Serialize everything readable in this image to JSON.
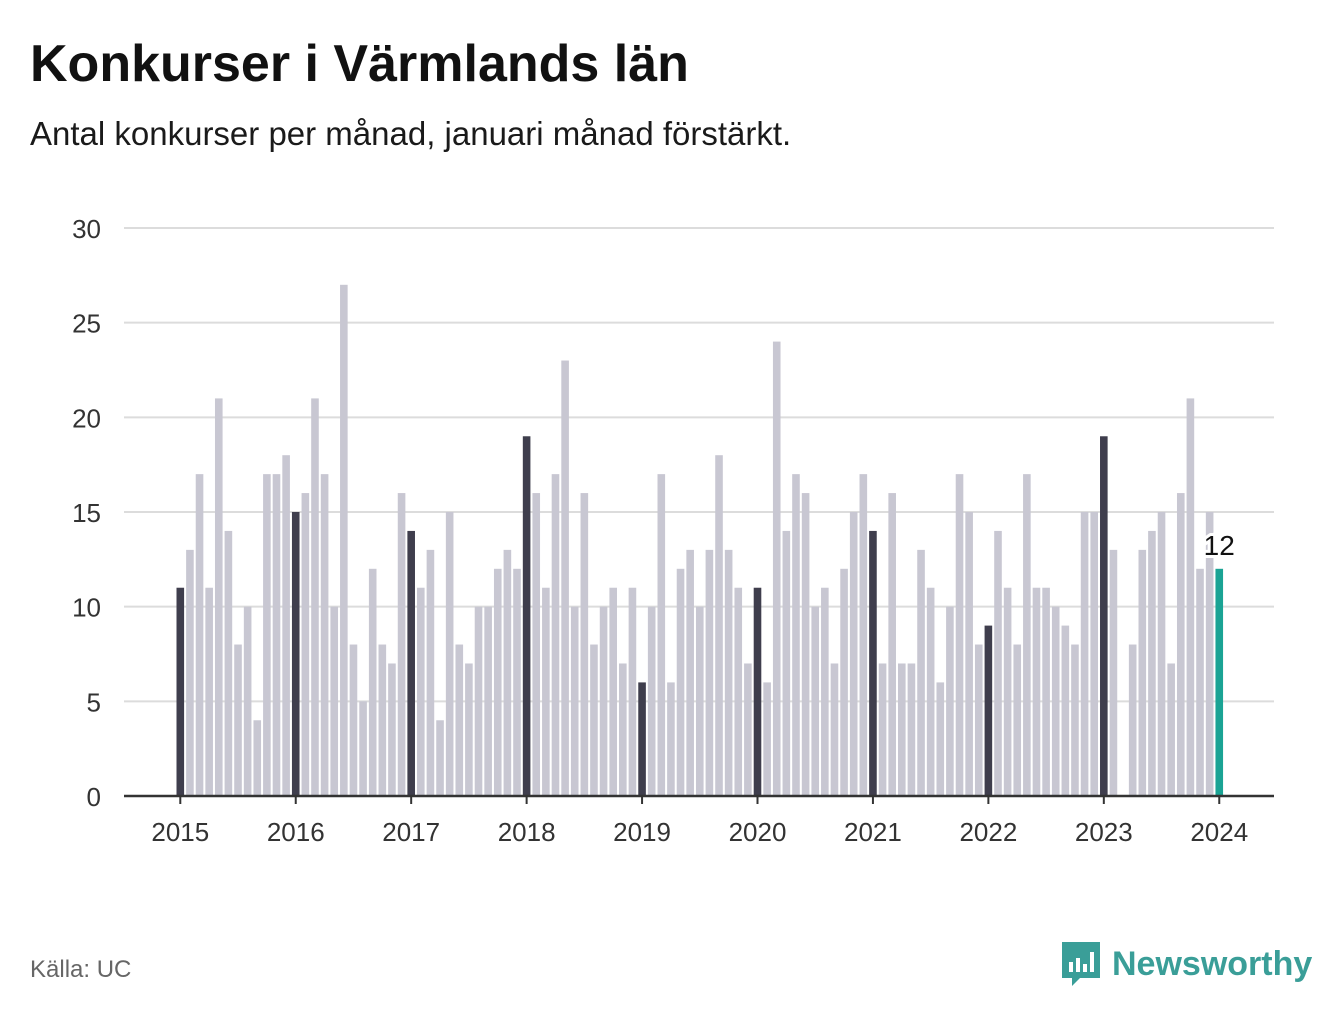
{
  "title": "Konkurser i Värmlands län",
  "subtitle": "Antal konkurser per månad, januari månad förstärkt.",
  "source": "Källa: UC",
  "brand": {
    "name": "Newsworthy",
    "icon": "newsworthy-logo-icon"
  },
  "colors": {
    "january": "#3f3e4d",
    "other": "#c8c7d2",
    "latest": "#1aa394",
    "grid": "#dcdcdc",
    "axis": "#333333"
  },
  "chart_data": {
    "type": "bar",
    "title": "Konkurser i Värmlands län",
    "subtitle": "Antal konkurser per månad, januari månad förstärkt.",
    "xlabel": "",
    "ylabel": "",
    "ylim": [
      0,
      30
    ],
    "y_ticks": [
      0,
      5,
      10,
      15,
      20,
      25,
      30
    ],
    "x_tick_labels": [
      "2015",
      "2016",
      "2017",
      "2018",
      "2019",
      "2020",
      "2021",
      "2022",
      "2023",
      "2024"
    ],
    "grid": true,
    "start": "2015-01",
    "end": "2024-01",
    "highlight": "January of each year is darker; latest month highlighted",
    "latest_label": "12",
    "values": [
      11,
      13,
      17,
      11,
      21,
      14,
      8,
      10,
      4,
      17,
      17,
      18,
      15,
      16,
      21,
      17,
      10,
      27,
      8,
      5,
      12,
      8,
      7,
      16,
      14,
      11,
      13,
      4,
      15,
      8,
      7,
      10,
      10,
      12,
      13,
      12,
      19,
      16,
      11,
      17,
      23,
      10,
      16,
      8,
      10,
      11,
      7,
      11,
      6,
      10,
      17,
      6,
      12,
      13,
      10,
      13,
      18,
      13,
      11,
      7,
      11,
      6,
      24,
      14,
      17,
      16,
      10,
      11,
      7,
      12,
      15,
      17,
      14,
      7,
      16,
      7,
      7,
      13,
      11,
      6,
      10,
      17,
      15,
      8,
      9,
      14,
      11,
      8,
      17,
      11,
      11,
      10,
      9,
      8,
      15,
      15,
      19,
      13,
      0,
      8,
      13,
      14,
      15,
      7,
      16,
      21,
      12,
      15,
      12
    ]
  }
}
